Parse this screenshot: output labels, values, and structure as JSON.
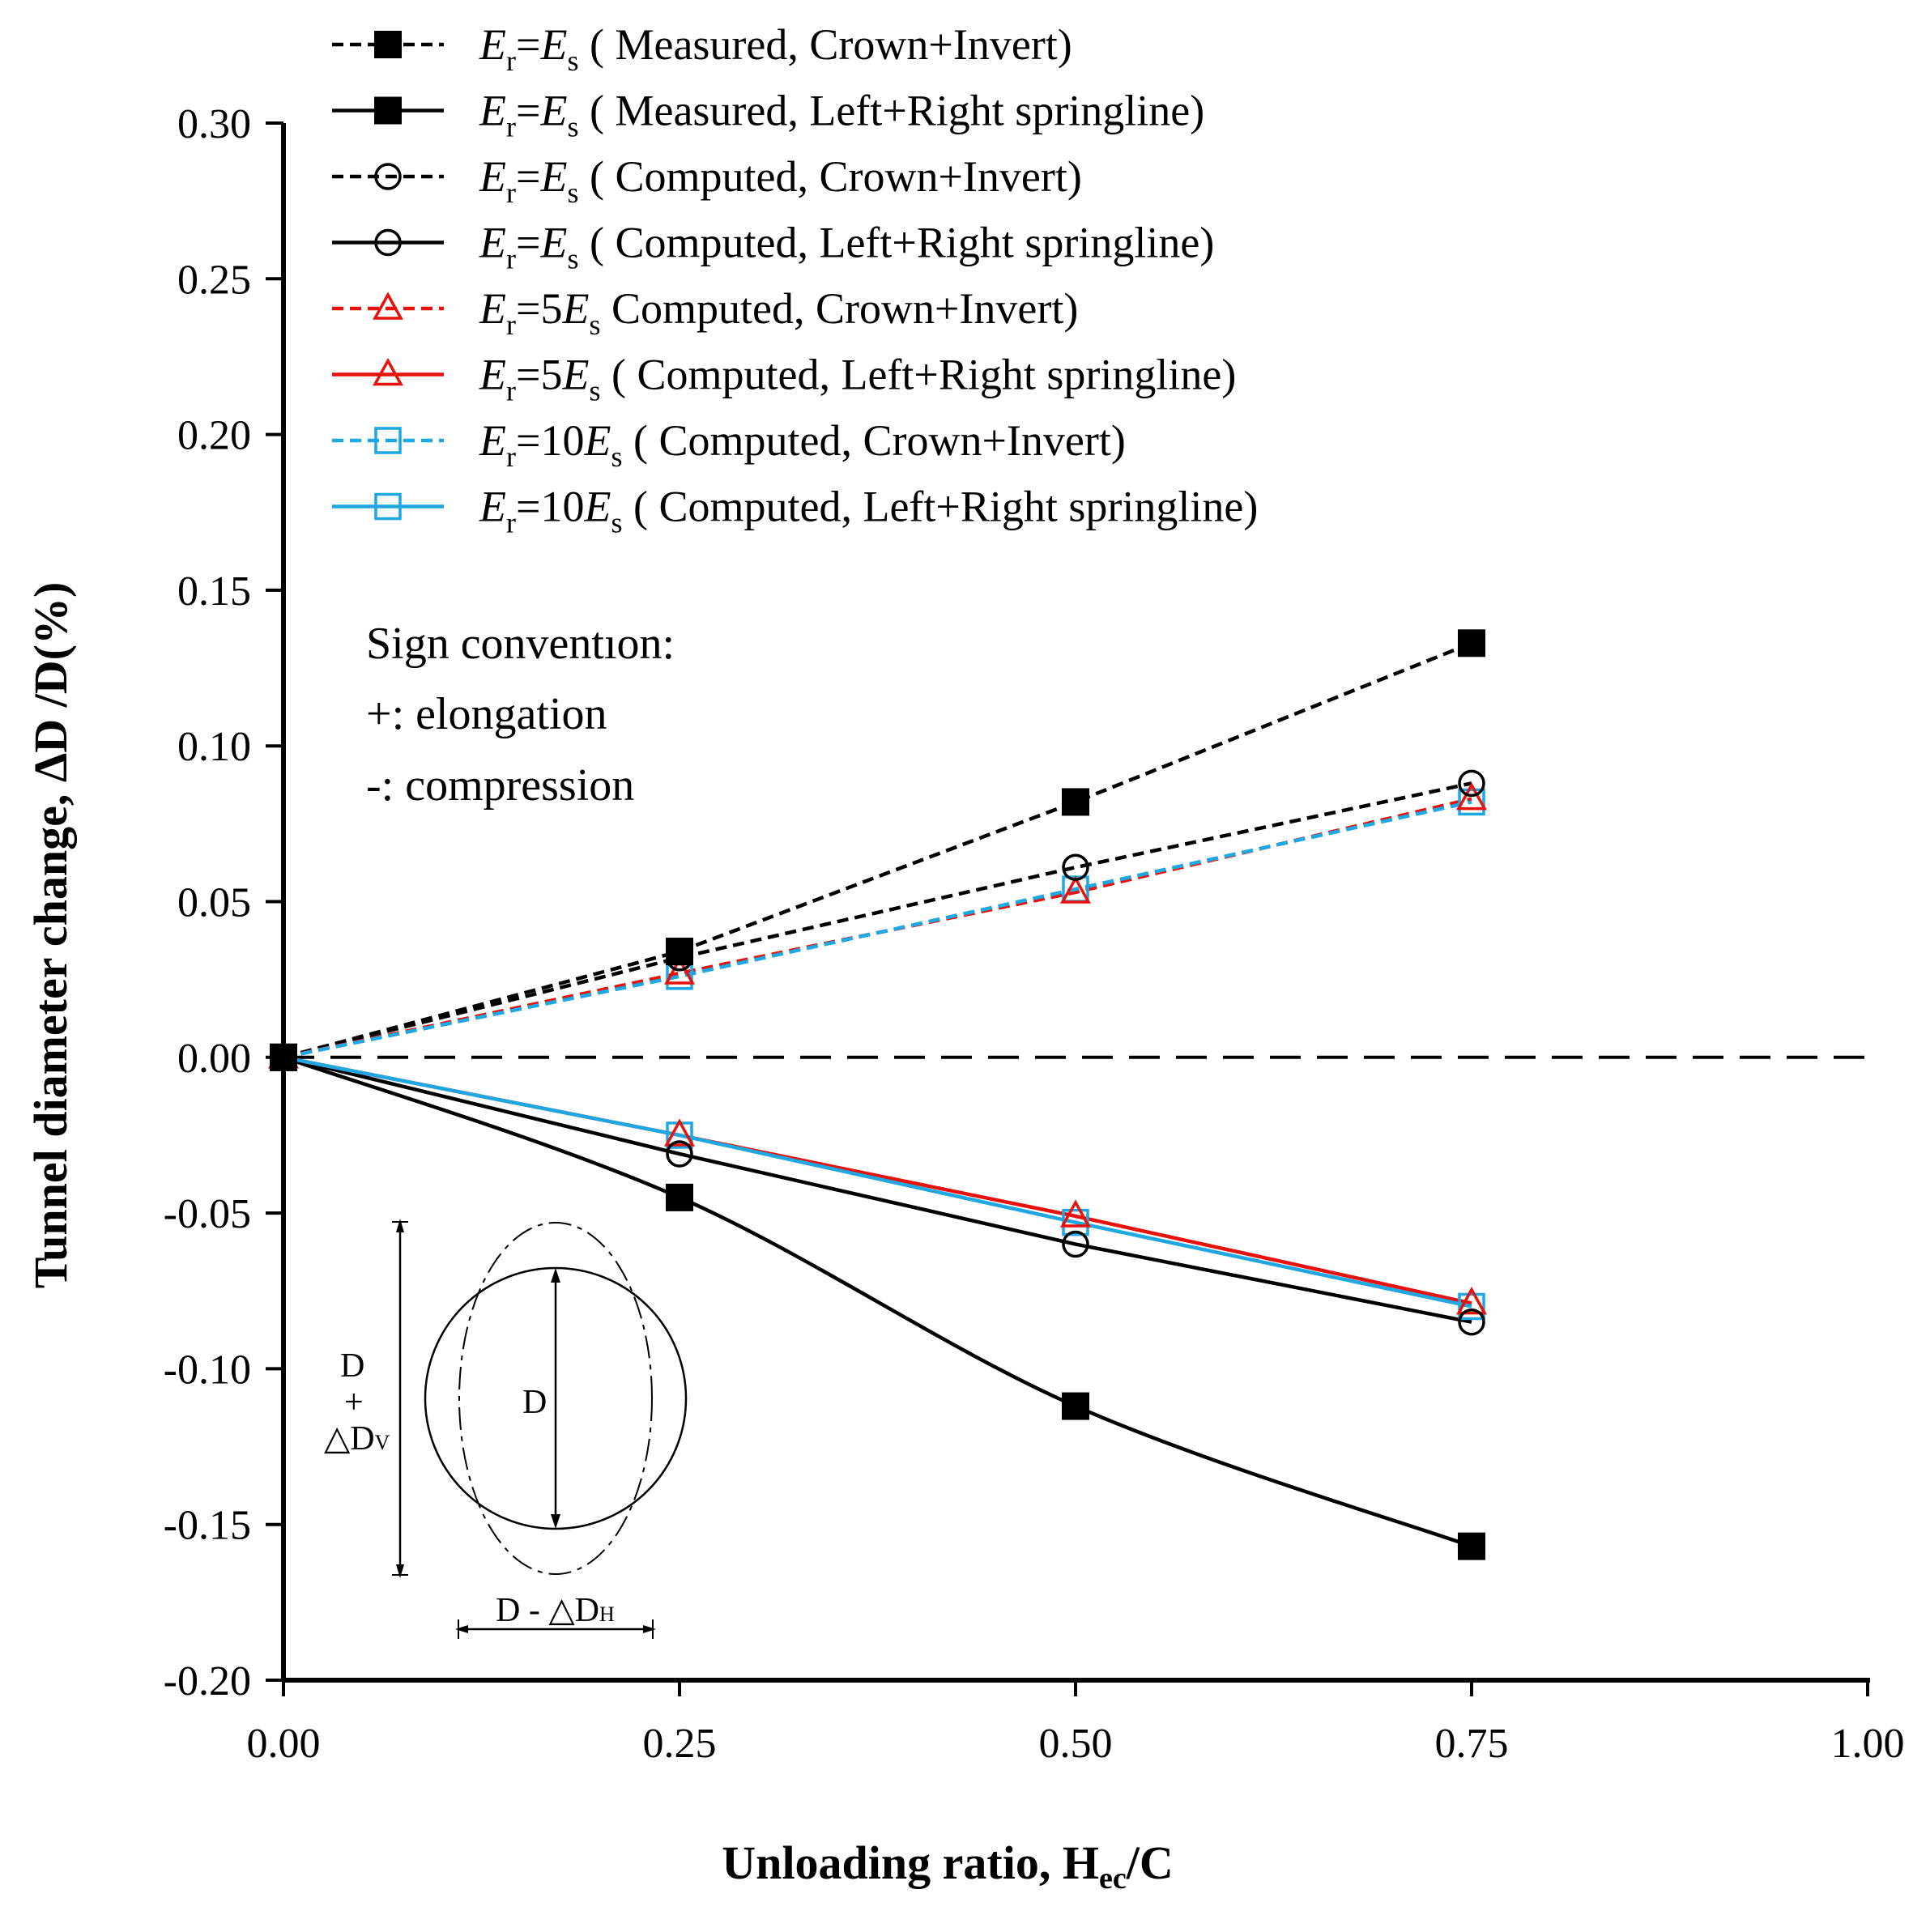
{
  "chart_data": {
    "type": "line",
    "title": "",
    "xlabel": "Unloading ratio, H",
    "xlabel_sub": "ec",
    "xlabel_tail": "/C",
    "ylabel": "Tunnel diameter change,  ΔD /D(%)",
    "xlim": [
      0,
      1
    ],
    "ylim": [
      -0.2,
      0.3
    ],
    "x_ticks": [
      "0.00",
      "0.25",
      "0.50",
      "0.75",
      "1.00"
    ],
    "y_ticks": [
      "-0.20",
      "-0.15",
      "-0.10",
      "-0.05",
      "0.00",
      "0.05",
      "0.10",
      "0.15",
      "0.20",
      "0.25",
      "0.30"
    ],
    "x": [
      0,
      0.25,
      0.5,
      0.75
    ],
    "zero_line": true,
    "series": [
      {
        "name": "Er=Es ( Measured, Crown+Invert)",
        "values": [
          0,
          0.034,
          0.082,
          0.133
        ],
        "color": "#000000",
        "dashed": true,
        "marker": "filled-square",
        "smooth": false
      },
      {
        "name": "Er=Es ( Measured, Left+Right springline)",
        "values": [
          0,
          -0.045,
          -0.112,
          -0.157
        ],
        "color": "#000000",
        "dashed": false,
        "marker": "filled-square",
        "smooth": true
      },
      {
        "name": "Er=Es ( Computed, Crown+Invert)",
        "values": [
          0,
          0.032,
          0.061,
          0.088
        ],
        "color": "#000000",
        "dashed": true,
        "marker": "open-circle",
        "smooth": false
      },
      {
        "name": "Er=Es ( Computed, Left+Right springline)",
        "values": [
          0,
          -0.031,
          -0.06,
          -0.085
        ],
        "color": "#000000",
        "dashed": false,
        "marker": "open-circle",
        "smooth": false
      },
      {
        "name": "Er=5Es Computed, Crown+Invert)",
        "values": [
          0,
          0.027,
          0.053,
          0.083
        ],
        "color": "#e8120c",
        "dashed": true,
        "marker": "open-triangle",
        "smooth": false
      },
      {
        "name": "Er=5Es ( Computed, Left+Right springline)",
        "values": [
          0,
          -0.025,
          -0.051,
          -0.079
        ],
        "color": "#e8120c",
        "dashed": false,
        "marker": "open-triangle",
        "smooth": false
      },
      {
        "name": "Er=10Es ( Computed, Crown+Invert)",
        "values": [
          0,
          0.026,
          0.054,
          0.082
        ],
        "color": "#1ea7e1",
        "dashed": true,
        "marker": "open-square",
        "smooth": false
      },
      {
        "name": "Er=10Es ( Computed, Left+Right springline)",
        "values": [
          0,
          -0.025,
          -0.053,
          -0.08
        ],
        "color": "#1ea7e1",
        "dashed": false,
        "marker": "open-square",
        "smooth": false
      }
    ],
    "legend": [
      {
        "e1": "E",
        "s1": "r",
        "mid": "=",
        "coef": "",
        "e2": "E",
        "s2": "s",
        "tail": " ( Measured, Crown+Invert)"
      },
      {
        "e1": "E",
        "s1": "r",
        "mid": "=",
        "coef": "",
        "e2": "E",
        "s2": "s",
        "tail": " ( Measured, Left+Right springline)"
      },
      {
        "e1": "E",
        "s1": "r",
        "mid": "=",
        "coef": "",
        "e2": "E",
        "s2": "s",
        "tail": " ( Computed, Crown+Invert)"
      },
      {
        "e1": "E",
        "s1": "r",
        "mid": "=",
        "coef": "",
        "e2": "E",
        "s2": "s",
        "tail": " ( Computed, Left+Right springline)"
      },
      {
        "e1": "E",
        "s1": "r",
        "mid": "=",
        "coef": "5",
        "e2": "E",
        "s2": "s",
        "tail": " Computed, Crown+Invert)"
      },
      {
        "e1": "E",
        "s1": "r",
        "mid": "=",
        "coef": "5",
        "e2": "E",
        "s2": "s",
        "tail": " ( Computed, Left+Right springline)"
      },
      {
        "e1": "E",
        "s1": "r",
        "mid": "=",
        "coef": "10",
        "e2": "E",
        "s2": "s",
        "tail": " ( Computed, Crown+Invert)"
      },
      {
        "e1": "E",
        "s1": "r",
        "mid": "=",
        "coef": "10",
        "e2": "E",
        "s2": "s",
        "tail": " ( Computed, Left+Right springline)"
      }
    ],
    "annotations": {
      "sign_title": "Sign conventıon:",
      "sign_plus": "+: elongation",
      "sign_minus": "-: compression"
    },
    "inset": {
      "d_center": "D",
      "v_top": "D",
      "v_plus": "+",
      "v_delta": "△D",
      "v_sub": "V",
      "h_label": "D  - △D",
      "h_sub": "H"
    }
  }
}
